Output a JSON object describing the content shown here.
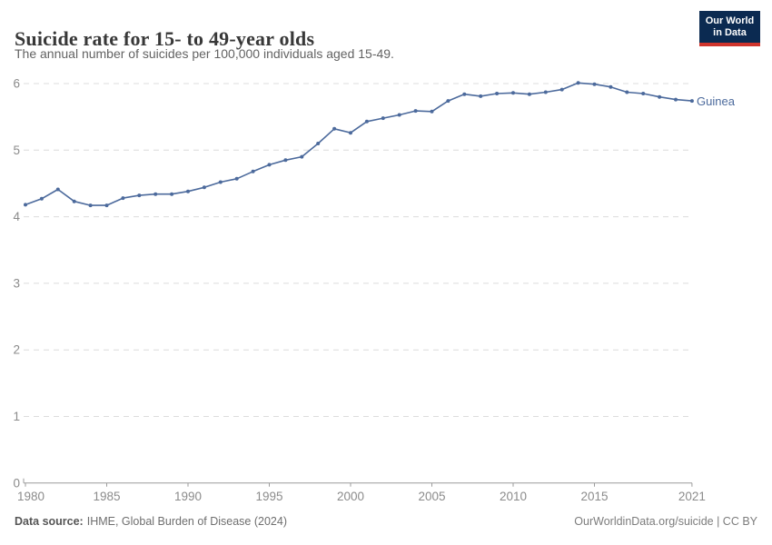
{
  "logo": {
    "line1": "Our World",
    "line2": "in Data"
  },
  "footer": {
    "source_label": "Data source:",
    "source_text": "IHME, Global Burden of Disease (2024)",
    "license": "OurWorldinData.org/suicide | CC BY"
  },
  "colors": {
    "line": "#4C6A9C",
    "point": "#4C6A9C",
    "grid": "#dcdcdc",
    "axis": "#9b9b9b",
    "tick_text": "#8b8b8b",
    "entity_label": "#4C6A9C",
    "logo_bg": "#0b2a51",
    "logo_red": "#cf342c"
  },
  "chart_data": {
    "type": "line",
    "title": "Suicide rate for 15- to 49-year olds",
    "subtitle": "The annual number of suicides per 100,000 individuals aged 15-49.",
    "xlabel": "",
    "ylabel": "",
    "xlim": [
      1980,
      2021
    ],
    "ylim": [
      0,
      6
    ],
    "grid": "horizontal-dashed",
    "legend_position": "end-of-line-label",
    "x_ticks": [
      1980,
      1985,
      1990,
      1995,
      2000,
      2005,
      2010,
      2015,
      2021
    ],
    "y_ticks": [
      0,
      1,
      2,
      3,
      4,
      5,
      6
    ],
    "series": [
      {
        "name": "Guinea",
        "x": [
          1980,
          1981,
          1982,
          1983,
          1984,
          1985,
          1986,
          1987,
          1988,
          1989,
          1990,
          1991,
          1992,
          1993,
          1994,
          1995,
          1996,
          1997,
          1998,
          1999,
          2000,
          2001,
          2002,
          2003,
          2004,
          2005,
          2006,
          2007,
          2008,
          2009,
          2010,
          2011,
          2012,
          2013,
          2014,
          2015,
          2016,
          2017,
          2018,
          2019,
          2020,
          2021
        ],
        "values": [
          4.18,
          4.27,
          4.41,
          4.23,
          4.17,
          4.17,
          4.28,
          4.32,
          4.34,
          4.34,
          4.38,
          4.44,
          4.52,
          4.57,
          4.68,
          4.78,
          4.85,
          4.9,
          5.1,
          5.32,
          5.26,
          5.43,
          5.48,
          5.53,
          5.59,
          5.58,
          5.74,
          5.84,
          5.81,
          5.85,
          5.86,
          5.84,
          5.87,
          5.91,
          6.01,
          5.99,
          5.95,
          5.87,
          5.85,
          5.8,
          5.76,
          5.74
        ]
      }
    ]
  }
}
